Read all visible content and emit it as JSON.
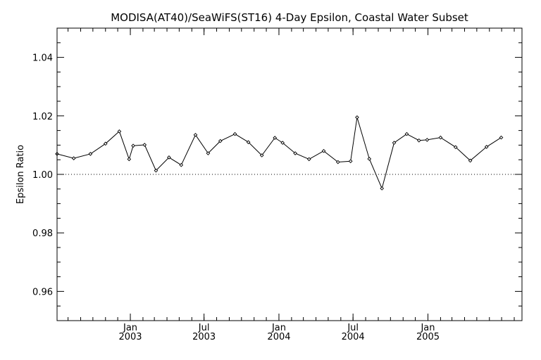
{
  "chart_data": {
    "type": "line",
    "title": "MODISA(AT40)/SeaWiFS(ST16) 4-Day Epsilon, Coastal Water Subset",
    "xlabel": "",
    "ylabel": "Epsilon Ratio",
    "ylim": [
      0.95,
      1.05
    ],
    "xlim": [
      "2002-07-05",
      "2005-08-20"
    ],
    "y_ticks": [
      "0.96",
      "0.98",
      "1.00",
      "1.02",
      "1.04"
    ],
    "x_ticks": [
      {
        "date": "2003-01-01",
        "month": "Jan",
        "year": "2003"
      },
      {
        "date": "2003-07-01",
        "month": "Jul",
        "year": "2003"
      },
      {
        "date": "2004-01-01",
        "month": "Jan",
        "year": "2004"
      },
      {
        "date": "2004-07-01",
        "month": "Jul",
        "year": "2004"
      },
      {
        "date": "2005-01-01",
        "month": "Jan",
        "year": "2005"
      }
    ],
    "reference_line": 1.0,
    "grid": false,
    "series": [
      {
        "x": [
          "2002-07-05",
          "2002-08-15",
          "2002-09-25",
          "2002-11-01",
          "2002-12-05",
          "2002-12-29",
          "2003-01-08",
          "2003-02-05",
          "2003-03-05",
          "2003-04-06",
          "2003-05-06",
          "2003-06-10",
          "2003-07-11",
          "2003-08-10",
          "2003-09-15",
          "2003-10-18",
          "2003-11-20",
          "2003-12-22",
          "2004-01-10",
          "2004-02-10",
          "2004-03-15",
          "2004-04-20",
          "2004-05-25",
          "2004-06-25",
          "2004-07-11",
          "2004-08-10",
          "2004-09-10",
          "2004-10-10",
          "2004-11-10",
          "2004-12-10",
          "2004-12-30",
          "2005-02-01",
          "2005-03-10",
          "2005-04-15",
          "2005-05-25",
          "2005-06-30"
        ],
        "y": [
          1.007,
          1.0055,
          1.007,
          1.0105,
          1.0147,
          1.0052,
          1.0098,
          1.0101,
          1.0013,
          1.0058,
          1.0032,
          1.0135,
          1.0072,
          1.0114,
          1.0138,
          1.011,
          1.0065,
          1.0125,
          1.0108,
          1.0072,
          1.0052,
          1.008,
          1.0042,
          1.0045,
          1.0195,
          1.0053,
          0.9952,
          1.0108,
          1.0138,
          1.0116,
          1.0118,
          1.0126,
          1.0093,
          1.0047,
          1.0094,
          1.0126
        ]
      }
    ]
  }
}
